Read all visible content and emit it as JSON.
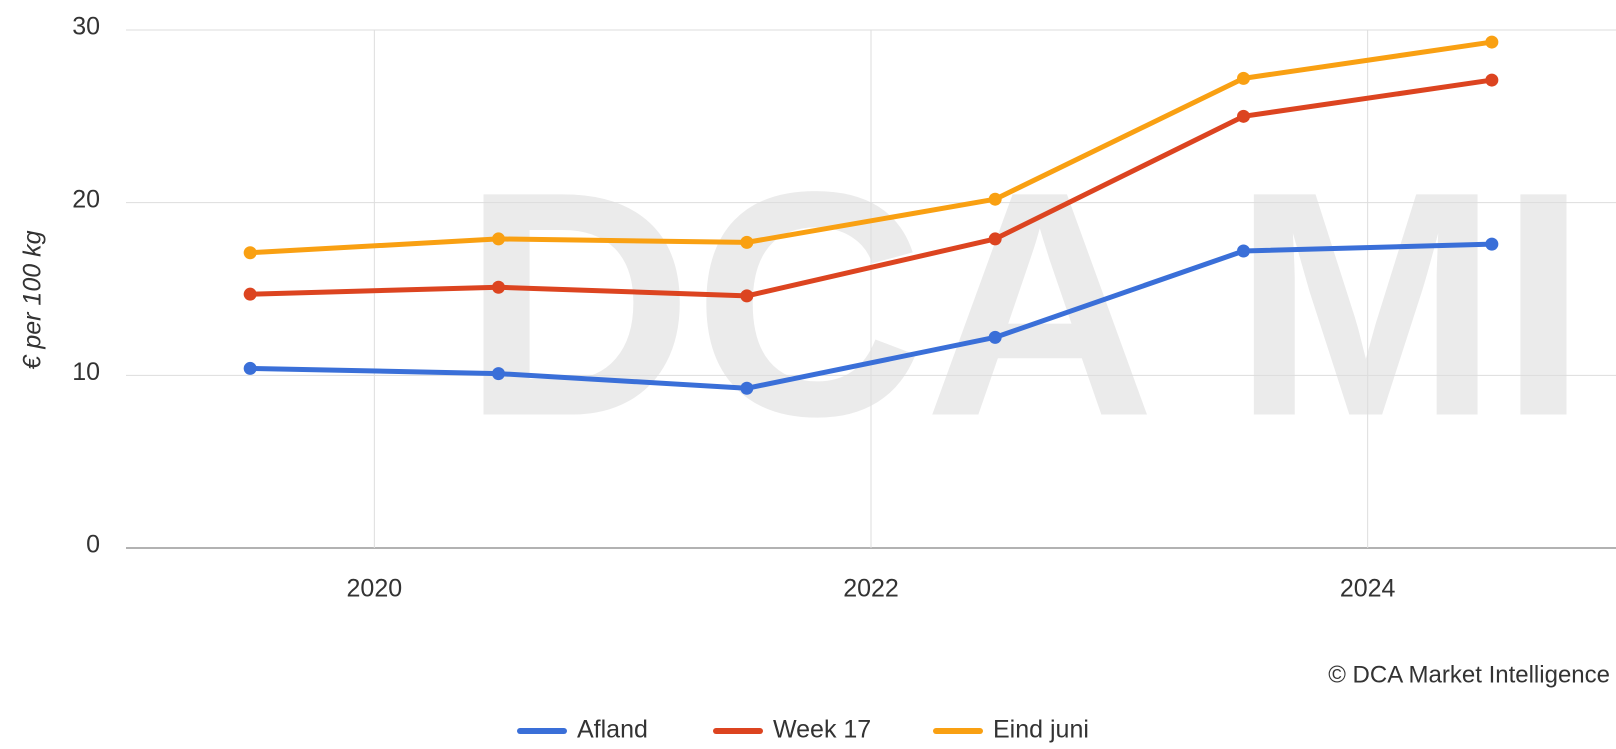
{
  "chart_data": {
    "type": "line",
    "y_label": "€ per 100 kg",
    "watermark": "DCA MI",
    "source": "© DCA Market Intelligence",
    "x": [
      2019.5,
      2020.5,
      2021.5,
      2022.5,
      2023.5,
      2024.5
    ],
    "xlim": [
      2019,
      2025
    ],
    "xticks": [
      2020,
      2022,
      2024
    ],
    "ylim": [
      0,
      30
    ],
    "yticks": [
      0,
      10,
      20,
      30
    ],
    "grid": true,
    "legend": "bottom",
    "series": [
      {
        "name": "Afland",
        "color": "#3a6fd8",
        "values": [
          10.4,
          10.1,
          9.25,
          12.2,
          17.2,
          17.6
        ]
      },
      {
        "name": "Week 17",
        "color": "#dc4420",
        "values": [
          14.7,
          15.1,
          14.6,
          17.9,
          25.0,
          27.1
        ]
      },
      {
        "name": "Eind juni",
        "color": "#f9a012",
        "values": [
          17.1,
          17.9,
          17.7,
          20.2,
          27.2,
          29.3
        ]
      }
    ]
  }
}
